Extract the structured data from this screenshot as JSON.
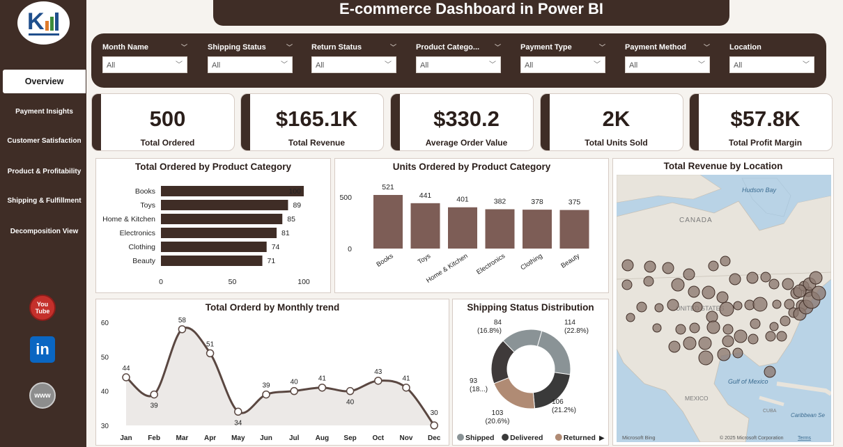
{
  "sidebar": {
    "items": [
      {
        "label": "Overview"
      },
      {
        "label": "Payment Insights"
      },
      {
        "label": "Customer Satisfaction"
      },
      {
        "label": "Product & Profitability"
      },
      {
        "label": "Shipping & Fulfillment"
      },
      {
        "label": "Decomposition View"
      }
    ],
    "social": {
      "youtube": "You Tube",
      "linkedin": "in",
      "web": "www"
    }
  },
  "header": {
    "title": "E-commerce Dashboard in Power BI"
  },
  "filters": [
    {
      "label": "Month Name",
      "value": "All"
    },
    {
      "label": "Shipping Status",
      "value": "All"
    },
    {
      "label": "Return Status",
      "value": "All"
    },
    {
      "label": "Product Catego...",
      "value": "All"
    },
    {
      "label": "Payment Type",
      "value": "All"
    },
    {
      "label": "Payment Method",
      "value": "All"
    },
    {
      "label": "Location",
      "value": "All"
    }
  ],
  "kpis": [
    {
      "value": "500",
      "label": "Total Ordered"
    },
    {
      "value": "$165.1K",
      "label": "Total Revenue"
    },
    {
      "value": "$330.2",
      "label": "Average Order Value"
    },
    {
      "value": "2K",
      "label": "Total Units Sold"
    },
    {
      "value": "$57.8K",
      "label": "Total Profit Margin"
    }
  ],
  "colors": {
    "dark": "#3f2d26",
    "bar": "#7d5d56",
    "accent": "#b08b74",
    "grey": "#8a9396",
    "charcoal": "#3a3a3a"
  },
  "chart_data": [
    {
      "type": "bar",
      "title": "Total Ordered by Product Category",
      "categories": [
        "Books",
        "Toys",
        "Home & Kitchen",
        "Electronics",
        "Clothing",
        "Beauty"
      ],
      "values": [
        100,
        89,
        85,
        81,
        74,
        71
      ],
      "xticks": [
        "0",
        "50",
        "100"
      ],
      "xlim": [
        0,
        100
      ]
    },
    {
      "type": "bar",
      "title": "Units Ordered by Product Category",
      "categories": [
        "Books",
        "Toys",
        "Home & Kitchen",
        "Electronics",
        "Clothing",
        "Beauty"
      ],
      "values": [
        521,
        441,
        401,
        382,
        378,
        375
      ],
      "yticks": [
        "500",
        "0"
      ],
      "ylim": [
        0,
        521
      ]
    },
    {
      "type": "line",
      "title": "Total Orderd by Monthly trend",
      "categories": [
        "Jan",
        "Feb",
        "Mar",
        "Apr",
        "May",
        "Jun",
        "Jul",
        "Aug",
        "Sep",
        "Oct",
        "Nov",
        "Dec"
      ],
      "values": [
        44,
        39,
        58,
        51,
        34,
        39,
        40,
        41,
        40,
        43,
        41,
        30
      ],
      "yticks": [
        "60",
        "50",
        "40",
        "30"
      ],
      "ylim": [
        30,
        60
      ]
    },
    {
      "type": "pie",
      "title": "Shipping Status Distribution",
      "slices": [
        {
          "value": 114,
          "label": "114",
          "pct": "(22.8%)",
          "color": "#8a9396"
        },
        {
          "value": 106,
          "label": "106",
          "pct": "(21.2%)",
          "color": "#3a3a3a"
        },
        {
          "value": 103,
          "label": "103",
          "pct": "(20.6%)",
          "color": "#b08b74"
        },
        {
          "value": 93,
          "label": "93",
          "pct": "(18...)",
          "color": "#3f3a3a"
        },
        {
          "value": 84,
          "label": "84",
          "pct": "(16.8%)",
          "color": "#8a9396"
        }
      ],
      "legend": [
        {
          "label": "Shipped",
          "color": "#8a9396"
        },
        {
          "label": "Delivered",
          "color": "#3a3a3a"
        },
        {
          "label": "Returned",
          "color": "#b08b74"
        }
      ]
    }
  ],
  "map": {
    "title": "Total Revenue by Location",
    "labels": {
      "hudson": "Hudson Bay",
      "canada": "CANADA",
      "us": "UNITED STATES",
      "gulf": "Gulf of Mexico",
      "mexico": "MEXICO",
      "cuba": "CUBA",
      "caribbean": "Caribbean Se"
    },
    "footer": {
      "bing": "Microsoft Bing",
      "copyright": "© 2025 Microsoft Corporation",
      "terms": "Terms"
    }
  }
}
